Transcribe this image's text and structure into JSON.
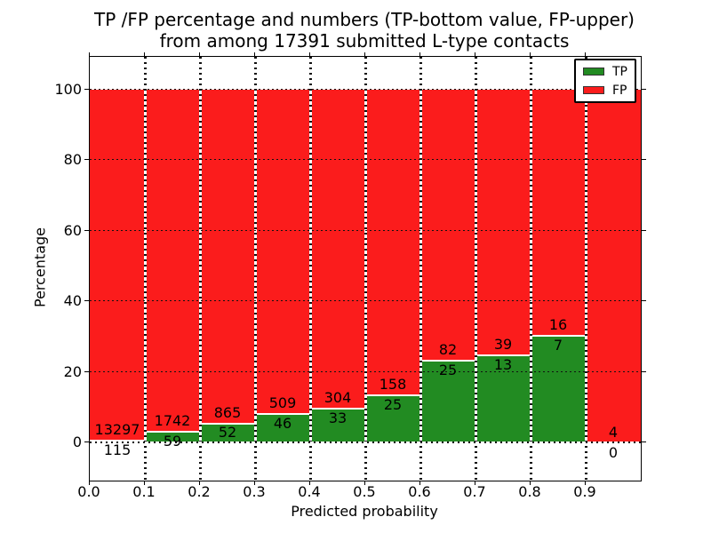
{
  "title": {
    "line1": "TP /FP percentage and numbers (TP-bottom value, FP-upper)",
    "line2": "from among 17391 submitted L-type contacts"
  },
  "axes": {
    "xlabel": "Predicted probability",
    "ylabel": "Percentage",
    "xtick_labels": [
      "0.0",
      "0.1",
      "0.2",
      "0.3",
      "0.4",
      "0.5",
      "0.6",
      "0.7",
      "0.8",
      "0.9"
    ],
    "ytick_labels": [
      "0",
      "20",
      "40",
      "60",
      "80",
      "100"
    ],
    "ytick_values": [
      0,
      20,
      40,
      60,
      80,
      100
    ]
  },
  "legend": {
    "entries": [
      {
        "label": "TP",
        "color": "#228b22"
      },
      {
        "label": "FP",
        "color": "#fb1c1c"
      }
    ]
  },
  "colors": {
    "tp_green": "#228b22",
    "fp_red": "#fb1c1c",
    "grid": "#111111",
    "frame": "#000000"
  },
  "chart_data": {
    "type": "bar",
    "stacked": true,
    "title": "TP /FP percentage and numbers (TP-bottom value, FP-upper) from among 17391 submitted L-type contacts",
    "xlabel": "Predicted probability",
    "ylabel": "Percentage",
    "xlim": [
      0.0,
      1.0
    ],
    "ylim": [
      -11,
      109
    ],
    "yticks": [
      0,
      20,
      40,
      60,
      80,
      100
    ],
    "xticks": [
      0.0,
      0.1,
      0.2,
      0.3,
      0.4,
      0.5,
      0.6,
      0.7,
      0.8,
      0.9
    ],
    "grid": true,
    "grid_style": "dotted",
    "legend_position": "upper right",
    "bin_width": 0.1,
    "bin_starts": [
      0.0,
      0.1,
      0.2,
      0.3,
      0.4,
      0.5,
      0.6,
      0.7,
      0.8,
      0.9
    ],
    "series": [
      {
        "name": "TP",
        "color": "#228b22",
        "counts": [
          115,
          59,
          52,
          46,
          33,
          25,
          25,
          13,
          7,
          0
        ]
      },
      {
        "name": "FP",
        "color": "#fb1c1c",
        "counts": [
          13297,
          1742,
          865,
          509,
          304,
          158,
          82,
          39,
          16,
          4
        ]
      }
    ],
    "tp_percent_of_bin": [
      0.86,
      3.28,
      5.67,
      8.29,
      9.79,
      13.66,
      23.36,
      25.0,
      30.43,
      0.0
    ],
    "bars_total_to": 100,
    "total_contacts": 17391,
    "note": "Each bin stacks to 100%: green TP share on bottom, red FP share on top; labels are raw counts (TP below boundary, FP above)."
  }
}
